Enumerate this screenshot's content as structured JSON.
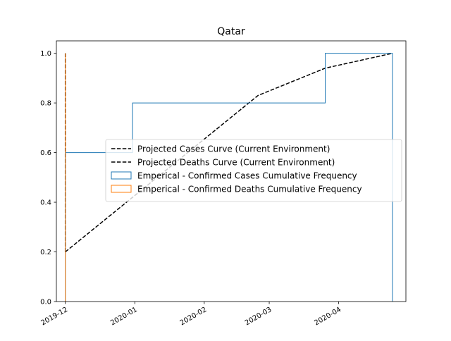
{
  "chart_data": {
    "type": "line",
    "title": "Qatar",
    "xlabel": "",
    "ylabel": "",
    "xlim": [
      "2019-11-27",
      "2020-05-01"
    ],
    "ylim": [
      0.0,
      1.05
    ],
    "x_ticks": [
      {
        "label": "2019-12",
        "date": "2019-12-01"
      },
      {
        "label": "2020-01",
        "date": "2020-01-01"
      },
      {
        "label": "2020-02",
        "date": "2020-02-01"
      },
      {
        "label": "2020-03",
        "date": "2020-03-01"
      },
      {
        "label": "2020-04",
        "date": "2020-04-01"
      }
    ],
    "y_ticks": [
      {
        "label": "0.0",
        "value": 0.0
      },
      {
        "label": "0.2",
        "value": 0.2
      },
      {
        "label": "0.4",
        "value": 0.4
      },
      {
        "label": "0.6",
        "value": 0.6
      },
      {
        "label": "0.8",
        "value": 0.8
      },
      {
        "label": "1.0",
        "value": 1.0
      }
    ],
    "grid": false,
    "legend_position": "center-right",
    "series": [
      {
        "name": "Projected Cases Curve (Current Environment)",
        "kind": "line",
        "style": "dashed",
        "color": "#000000",
        "points": [
          {
            "x": "2019-12-01",
            "y": 0.2
          },
          {
            "x": "2020-02-25",
            "y": 0.83
          },
          {
            "x": "2020-03-26",
            "y": 0.94
          },
          {
            "x": "2020-04-25",
            "y": 1.0
          }
        ]
      },
      {
        "name": "Projected Deaths Curve (Current Environment)",
        "kind": "line",
        "style": "dashed",
        "color": "#000000",
        "points": [
          {
            "x": "2019-12-01",
            "y": 0.2
          },
          {
            "x": "2019-12-01",
            "y": 1.0
          }
        ]
      },
      {
        "name": "Emperical - Confirmed Cases Cumulative Frequency",
        "kind": "step",
        "color": "#1f77b4",
        "steps": [
          {
            "x0": "2019-12-01",
            "x1": "2019-12-31",
            "y": 0.6
          },
          {
            "x0": "2019-12-31",
            "x1": "2020-03-26",
            "y": 0.8
          },
          {
            "x0": "2020-03-26",
            "x1": "2020-04-25",
            "y": 1.0
          }
        ]
      },
      {
        "name": "Emperical - Confirmed Deaths Cumulative Frequency",
        "kind": "step",
        "color": "#ff7f0e",
        "steps": [
          {
            "x0": "2019-12-01",
            "x1": "2019-12-01",
            "y": 1.0
          }
        ]
      }
    ]
  }
}
